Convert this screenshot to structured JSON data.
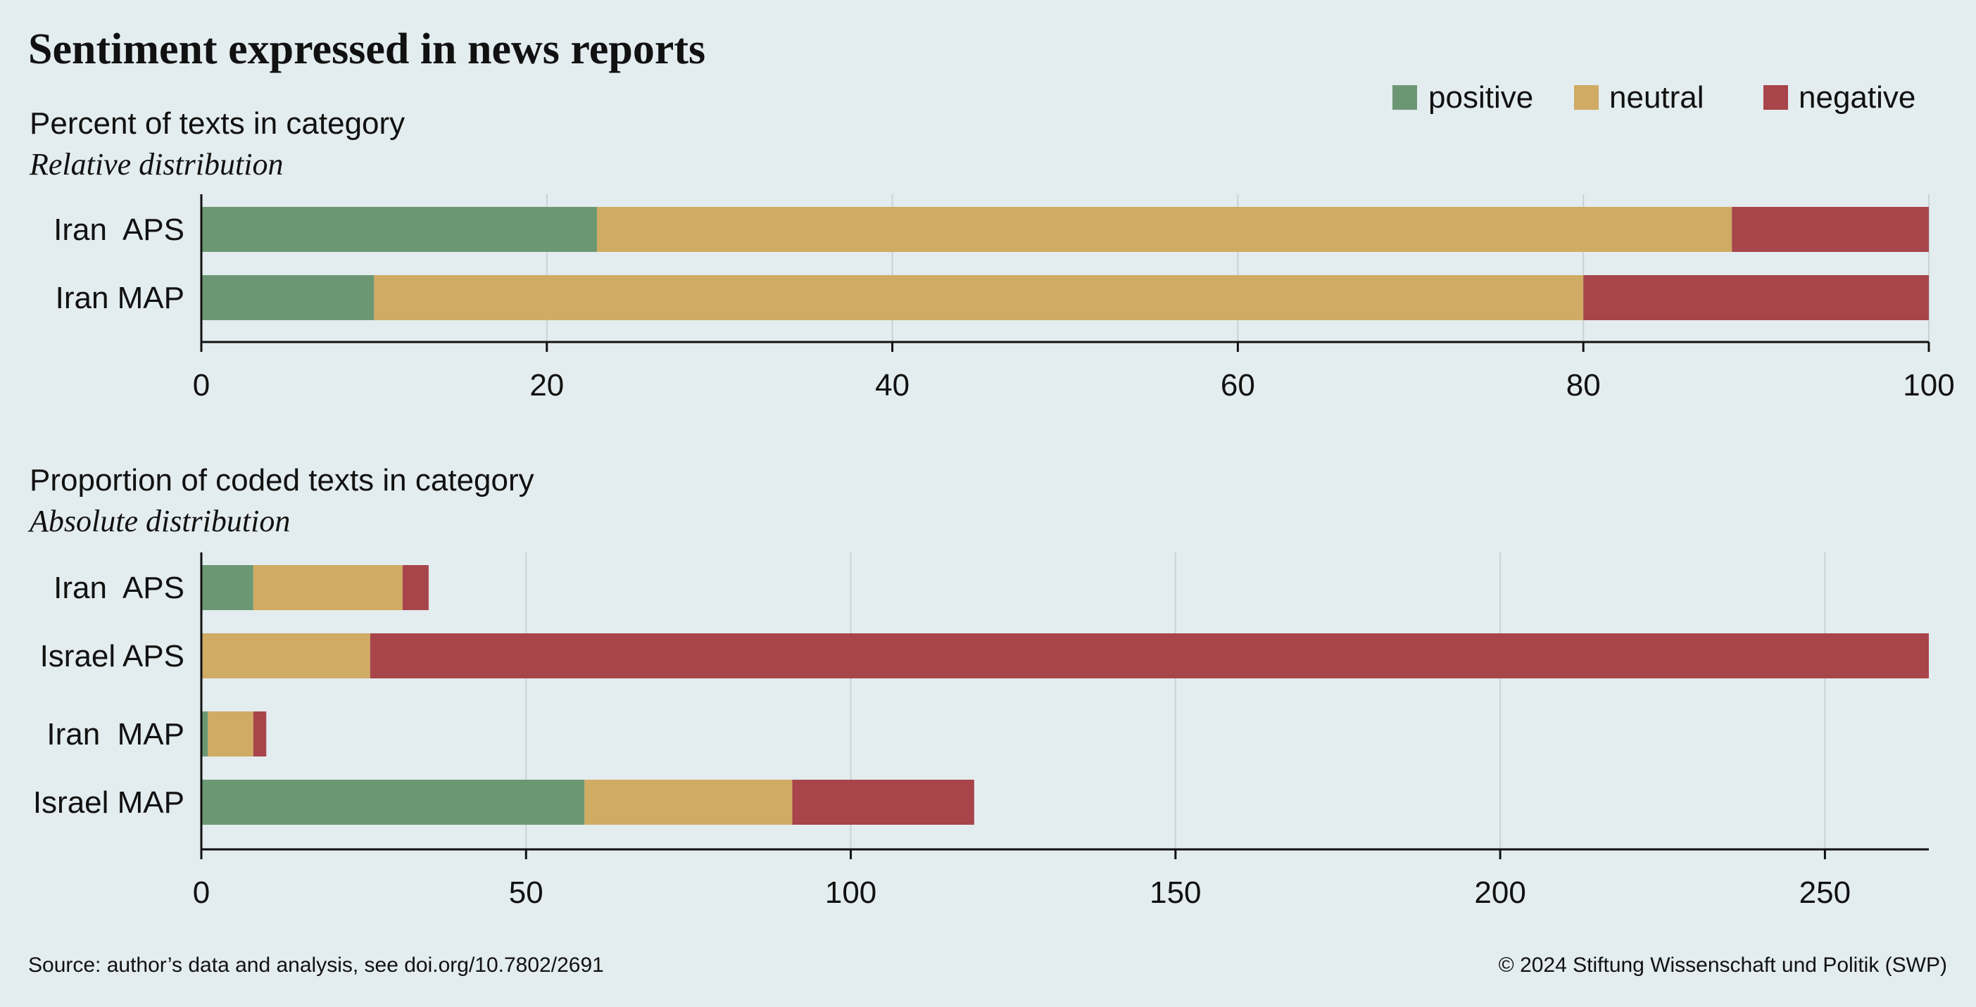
{
  "title": "Sentiment expressed in news reports",
  "legend": [
    {
      "label": "positive",
      "color": "#6b9873"
    },
    {
      "label": "neutral",
      "color": "#cfab63"
    },
    {
      "label": "negative",
      "color": "#a8454b"
    }
  ],
  "source": "Source: author’s data and analysis, see doi.org/10.7802/2691",
  "copyright": "© 2024 Stiftung Wissenschaft und Politik (SWP)",
  "chart_data": [
    {
      "type": "bar",
      "orientation": "horizontal",
      "stacked": true,
      "title": "Percent of texts in category",
      "subtitle": "Relative distribution",
      "categories": [
        "Iran  APS",
        "Iran MAP"
      ],
      "series": [
        {
          "name": "positive",
          "values": [
            22.9,
            10.0
          ]
        },
        {
          "name": "neutral",
          "values": [
            65.7,
            70.0
          ]
        },
        {
          "name": "negative",
          "values": [
            11.4,
            20.0
          ]
        }
      ],
      "xlim": [
        0,
        100
      ],
      "xticks": [
        0,
        20,
        40,
        60,
        80,
        100
      ],
      "grid": true,
      "legend_position": "top-right"
    },
    {
      "type": "bar",
      "orientation": "horizontal",
      "stacked": true,
      "title": "Proportion of coded texts in category",
      "subtitle": "Absolute distribution",
      "categories": [
        "Iran  APS",
        "Israel APS",
        "Iran  MAP",
        "Israel MAP"
      ],
      "series": [
        {
          "name": "positive",
          "values": [
            8,
            0,
            1,
            59
          ]
        },
        {
          "name": "neutral",
          "values": [
            23,
            26,
            7,
            32
          ]
        },
        {
          "name": "negative",
          "values": [
            4,
            240,
            2,
            28
          ]
        }
      ],
      "xlim": [
        0,
        266
      ],
      "xticks": [
        0,
        50,
        100,
        150,
        200,
        250
      ],
      "grid": true
    }
  ]
}
